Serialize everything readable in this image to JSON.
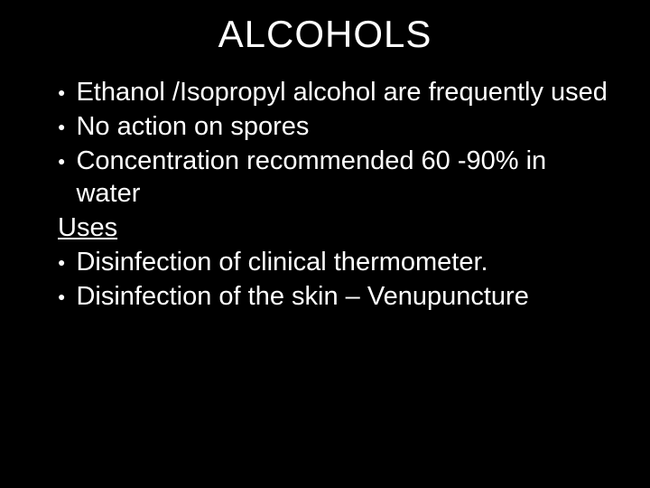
{
  "slide": {
    "title": "ALCOHOLS",
    "background_color": "#000000",
    "text_color": "#ffffff",
    "title_fontsize": 42,
    "body_fontsize": 29,
    "bullets_top": [
      "Ethanol /Isopropyl alcohol are frequently used",
      "No action on spores",
      "Concentration recommended 60 -90% in water"
    ],
    "heading": "Uses",
    "bullets_bottom": [
      "Disinfection of clinical thermometer.",
      "Disinfection of the skin – Venupuncture"
    ],
    "bullet_glyph": "●"
  }
}
